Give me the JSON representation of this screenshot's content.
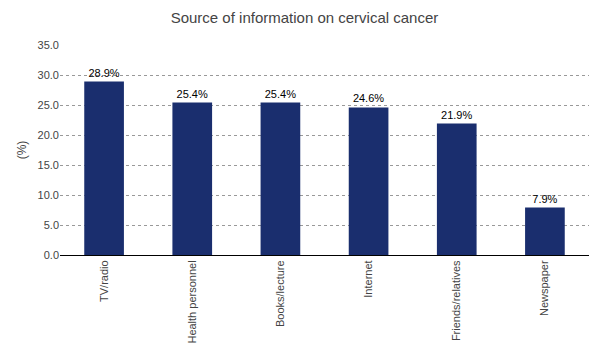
{
  "chart_data": {
    "type": "bar",
    "title": "Source of information on cervical cancer",
    "categories": [
      "TV/radio",
      "Health personnel",
      "Books/lecture",
      "Internet",
      "Friends/relatives",
      "Newspaper"
    ],
    "values": [
      28.9,
      25.4,
      25.4,
      24.6,
      21.9,
      7.9
    ],
    "value_labels": [
      "28.9%",
      "25.4%",
      "25.4%",
      "24.6%",
      "21.9%",
      "7.9%"
    ],
    "data_labels": true,
    "color": "#1a2e6e",
    "ylabel": "(%)",
    "ylim": [
      0,
      35
    ],
    "yticks": [
      {
        "value": 0,
        "label": "0.0"
      },
      {
        "value": 5,
        "label": "5.0"
      },
      {
        "value": 10,
        "label": "10.0"
      },
      {
        "value": 15,
        "label": "15.0"
      },
      {
        "value": 20,
        "label": "20.0"
      },
      {
        "value": 25,
        "label": "25.0"
      },
      {
        "value": 30,
        "label": "30.0"
      },
      {
        "value": 35,
        "label": "35.0"
      }
    ],
    "grid": true
  }
}
